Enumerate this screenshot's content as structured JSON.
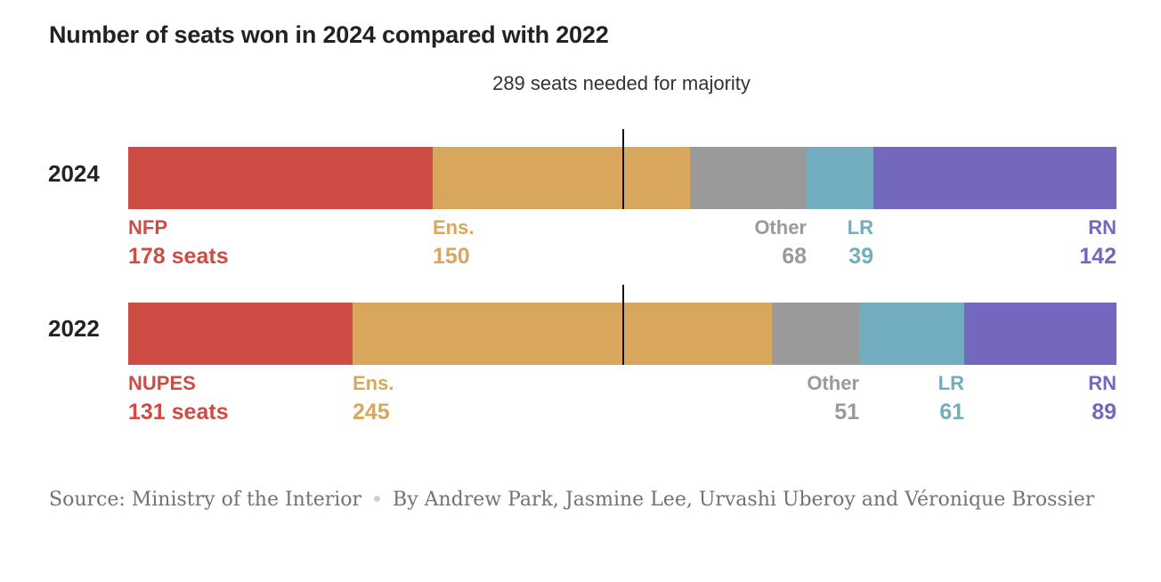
{
  "title": "Number of seats won in 2024 compared with 2022",
  "majority_label": "289 seats needed for majority",
  "footer": {
    "source": "Source: Ministry of the Interior",
    "byline": "By Andrew Park, Jasmine Lee, Urvashi Uberoy and Véronique Brossier"
  },
  "colors": {
    "NFP": "#cd4d45",
    "Ens": "#d9a65d",
    "Other": "#9a9a9a",
    "LR": "#72adc0",
    "RN": "#7468be"
  },
  "chart_data": {
    "type": "bar",
    "stacked": true,
    "orientation": "horizontal",
    "total_seats": 577,
    "majority_threshold": 289,
    "categories": [
      "2024",
      "2022"
    ],
    "rows": [
      {
        "year": "2024",
        "segments": [
          {
            "party": "NFP",
            "label": "NFP",
            "value": 178,
            "value_text": "178 seats",
            "color": "#cd4d45"
          },
          {
            "party": "Ens",
            "label": "Ens.",
            "value": 150,
            "value_text": "150",
            "color": "#d9a65d"
          },
          {
            "party": "Other",
            "label": "Other",
            "value": 68,
            "value_text": "68",
            "color": "#9a9a9a"
          },
          {
            "party": "LR",
            "label": "LR",
            "value": 39,
            "value_text": "39",
            "color": "#72adc0"
          },
          {
            "party": "RN",
            "label": "RN",
            "value": 142,
            "value_text": "142",
            "color": "#7468be"
          }
        ]
      },
      {
        "year": "2022",
        "segments": [
          {
            "party": "NFP",
            "label": "NUPES",
            "value": 131,
            "value_text": "131 seats",
            "color": "#cd4d45"
          },
          {
            "party": "Ens",
            "label": "Ens.",
            "value": 245,
            "value_text": "245",
            "color": "#d9a65d"
          },
          {
            "party": "Other",
            "label": "Other",
            "value": 51,
            "value_text": "51",
            "color": "#9a9a9a"
          },
          {
            "party": "LR",
            "label": "LR",
            "value": 61,
            "value_text": "61",
            "color": "#72adc0"
          },
          {
            "party": "RN",
            "label": "RN",
            "value": 89,
            "value_text": "89",
            "color": "#7468be"
          }
        ]
      }
    ]
  }
}
